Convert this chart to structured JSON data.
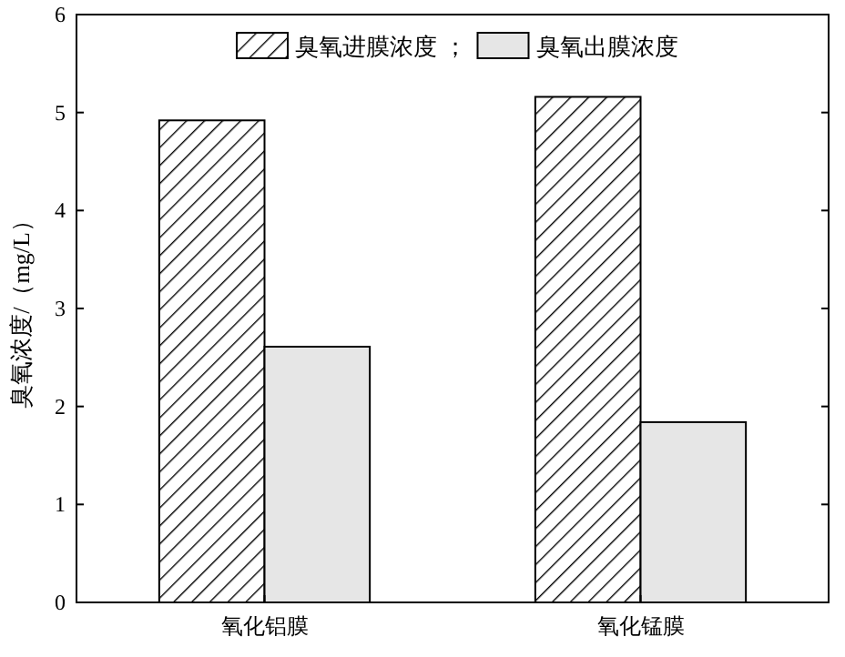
{
  "chart_data": {
    "type": "bar",
    "ylabel": "臭氧浓度/（mg/L）",
    "categories": [
      "氧化铝膜",
      "氧化锰膜"
    ],
    "series": [
      {
        "name": "臭氧进膜浓度 ；",
        "color": "#000000",
        "values": [
          4.92,
          5.16
        ]
      },
      {
        "name": "臭氧出膜浓度",
        "color": "#e6e6e6",
        "values": [
          2.61,
          1.84
        ]
      }
    ],
    "ylim": [
      0,
      6
    ],
    "yticks": [
      0,
      1,
      2,
      3,
      4,
      5,
      6
    ],
    "grid": false,
    "legend": "top"
  }
}
